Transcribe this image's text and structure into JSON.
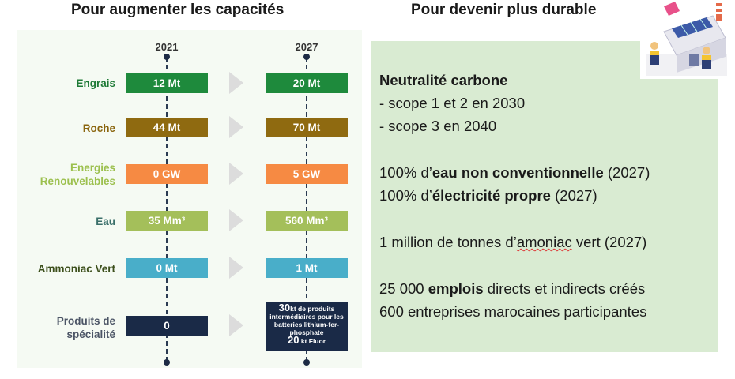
{
  "headings": {
    "left": "Pour augmenter les capacités",
    "right": "Pour devenir plus durable"
  },
  "years": {
    "start": "2021",
    "end": "2027"
  },
  "rows": [
    {
      "label": "Engrais",
      "v2021": "12 Mt",
      "v2027": "20 Mt",
      "color": "#1e8a3c",
      "label_color": "#1e7a36"
    },
    {
      "label": "Roche",
      "v2021": "44 Mt",
      "v2027": "70 Mt",
      "color": "#8f6a10",
      "label_color": "#8a650e"
    },
    {
      "label": "Energies Renouvelables",
      "v2021": "0 GW",
      "v2027": "5 GW",
      "color": "#f68a43",
      "label_color": "#9cc04e"
    },
    {
      "label": "Eau",
      "v2021": "35 Mm³",
      "v2027": "560 Mm³",
      "color": "#a4bf5a",
      "label_color": "#3a6f6a"
    },
    {
      "label": "Ammoniac Vert",
      "v2021": "0 Mt",
      "v2027": "1 Mt",
      "color": "#49aec9",
      "label_color": "#3c4f1b"
    },
    {
      "label": "Produits de spécialité",
      "v2021": "0",
      "color": "#1a2a47",
      "label_color": "#4c5566"
    }
  ],
  "special_2027": {
    "line1_big": "30",
    "line1_rest": "kt de produits intermédiaires pour les batteries lithium-fer-phosphate",
    "line2_big": "20",
    "line2_rest": " kt Fluor"
  },
  "sustainability": {
    "carbon_title": "Neutralité carbone",
    "scope12": "- scope 1 et 2 en 2030",
    "scope3": "- scope 3 en 2040",
    "water_pre": "100% d’",
    "water_bold": "eau non conventionnelle",
    "water_post": " (2027)",
    "elec_pre": "100% d’",
    "elec_bold": "électricité propre",
    "elec_post": " (2027)",
    "ammonia_pre": "1 million de tonnes d’",
    "ammonia_word": "amoniac",
    "ammonia_post": " vert (2027)",
    "jobs_pre": "25 000 ",
    "jobs_bold": "emplois",
    "jobs_post": " directs et indirects créés",
    "companies": "600 entreprises marocaines participantes"
  }
}
